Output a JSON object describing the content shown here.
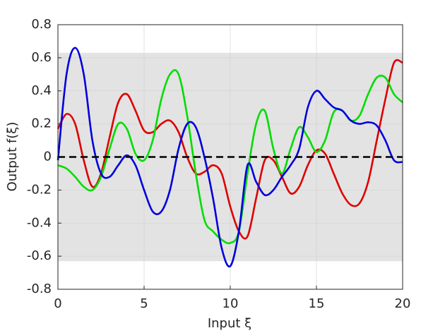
{
  "chart_data": {
    "type": "line",
    "x_label": "Input ξ",
    "y_label": "Output f(ξ)",
    "x": [
      0,
      0.5,
      1,
      1.5,
      2,
      2.5,
      3,
      3.5,
      4,
      4.5,
      5,
      5.5,
      6,
      6.5,
      7,
      7.5,
      8,
      8.5,
      9,
      9.5,
      10,
      10.5,
      11,
      11.5,
      12,
      12.5,
      13,
      13.5,
      14,
      14.5,
      15,
      15.5,
      16,
      16.5,
      17,
      17.5,
      18,
      18.5,
      19,
      19.5,
      20
    ],
    "series": [
      {
        "color": "#dd0000",
        "values": [
          0.17,
          0.26,
          0.2,
          -0.02,
          -0.18,
          -0.1,
          0.12,
          0.33,
          0.38,
          0.28,
          0.16,
          0.15,
          0.2,
          0.22,
          0.15,
          0.0,
          -0.1,
          -0.09,
          -0.05,
          -0.1,
          -0.3,
          -0.45,
          -0.48,
          -0.25,
          -0.02,
          -0.02,
          -0.12,
          -0.22,
          -0.18,
          -0.05,
          0.04,
          0.02,
          -0.1,
          -0.22,
          -0.29,
          -0.28,
          -0.15,
          0.1,
          0.35,
          0.57,
          0.57
        ]
      },
      {
        "color": "#00dd00",
        "values": [
          -0.05,
          -0.07,
          -0.12,
          -0.18,
          -0.2,
          -0.12,
          0.05,
          0.2,
          0.17,
          0.02,
          -0.02,
          0.1,
          0.35,
          0.5,
          0.5,
          0.25,
          -0.1,
          -0.38,
          -0.45,
          -0.5,
          -0.52,
          -0.45,
          -0.1,
          0.2,
          0.28,
          0.05,
          -0.1,
          0.05,
          0.18,
          0.12,
          0.03,
          0.1,
          0.27,
          0.28,
          0.22,
          0.25,
          0.38,
          0.48,
          0.48,
          0.38,
          0.33
        ]
      },
      {
        "color": "#0000dd",
        "values": [
          -0.02,
          0.5,
          0.66,
          0.5,
          0.1,
          -0.1,
          -0.12,
          -0.05,
          0.01,
          -0.05,
          -0.2,
          -0.33,
          -0.33,
          -0.2,
          0.05,
          0.2,
          0.18,
          0.0,
          -0.25,
          -0.55,
          -0.66,
          -0.45,
          -0.05,
          -0.15,
          -0.23,
          -0.2,
          -0.12,
          -0.05,
          0.05,
          0.3,
          0.4,
          0.35,
          0.3,
          0.28,
          0.22,
          0.2,
          0.21,
          0.19,
          0.1,
          -0.02,
          -0.03
        ]
      }
    ],
    "mean_line": 0,
    "mean_color": "#000000",
    "band": [
      -0.63,
      0.63
    ],
    "band_color": "#e3e3e3",
    "xlim": [
      0,
      20
    ],
    "xticks": [
      0,
      5,
      10,
      15,
      20
    ],
    "ylim": [
      -0.8,
      0.8
    ],
    "yticks": [
      -0.8,
      -0.6,
      -0.4,
      -0.2,
      0,
      0.2,
      0.4,
      0.6,
      0.8
    ],
    "grid": true
  }
}
